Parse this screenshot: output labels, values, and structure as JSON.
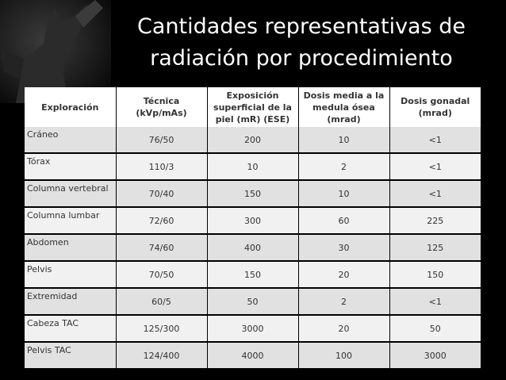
{
  "slide": {
    "title_line1": "Cantidades representativas de",
    "title_line2": "radiación por procedimiento"
  },
  "table": {
    "headers": [
      "Exploración",
      "Técnica (kVp/mAs)",
      "Exposición superficial de la piel (mR) (ESE)",
      "Dosis media a la medula ósea (mrad)",
      "Dosis gonadal (mrad)"
    ],
    "rows": [
      [
        "Cráneo",
        "76/50",
        "200",
        "10",
        "<1"
      ],
      [
        "Tórax",
        "110/3",
        "10",
        "2",
        "<1"
      ],
      [
        "Columna vertebral",
        "70/40",
        "150",
        "10",
        "<1"
      ],
      [
        "Columna lumbar",
        "72/60",
        "300",
        "60",
        "225"
      ],
      [
        "Abdomen",
        "74/60",
        "400",
        "30",
        "125"
      ],
      [
        "Pelvis",
        "70/50",
        "150",
        "20",
        "150"
      ],
      [
        "Extremidad",
        "60/5",
        "50",
        "2",
        "<1"
      ],
      [
        "Cabeza TAC",
        "125/300",
        "3000",
        "20",
        "50"
      ],
      [
        "Pelvis TAC",
        "124/400",
        "4000",
        "100",
        "3000"
      ]
    ]
  },
  "colors": {
    "background": "#000000",
    "header_bg": "#ffffff",
    "row_odd": "#e1e1e1",
    "row_even": "#f1f1f1"
  },
  "decor": {
    "image": "angel-statue-icon"
  }
}
